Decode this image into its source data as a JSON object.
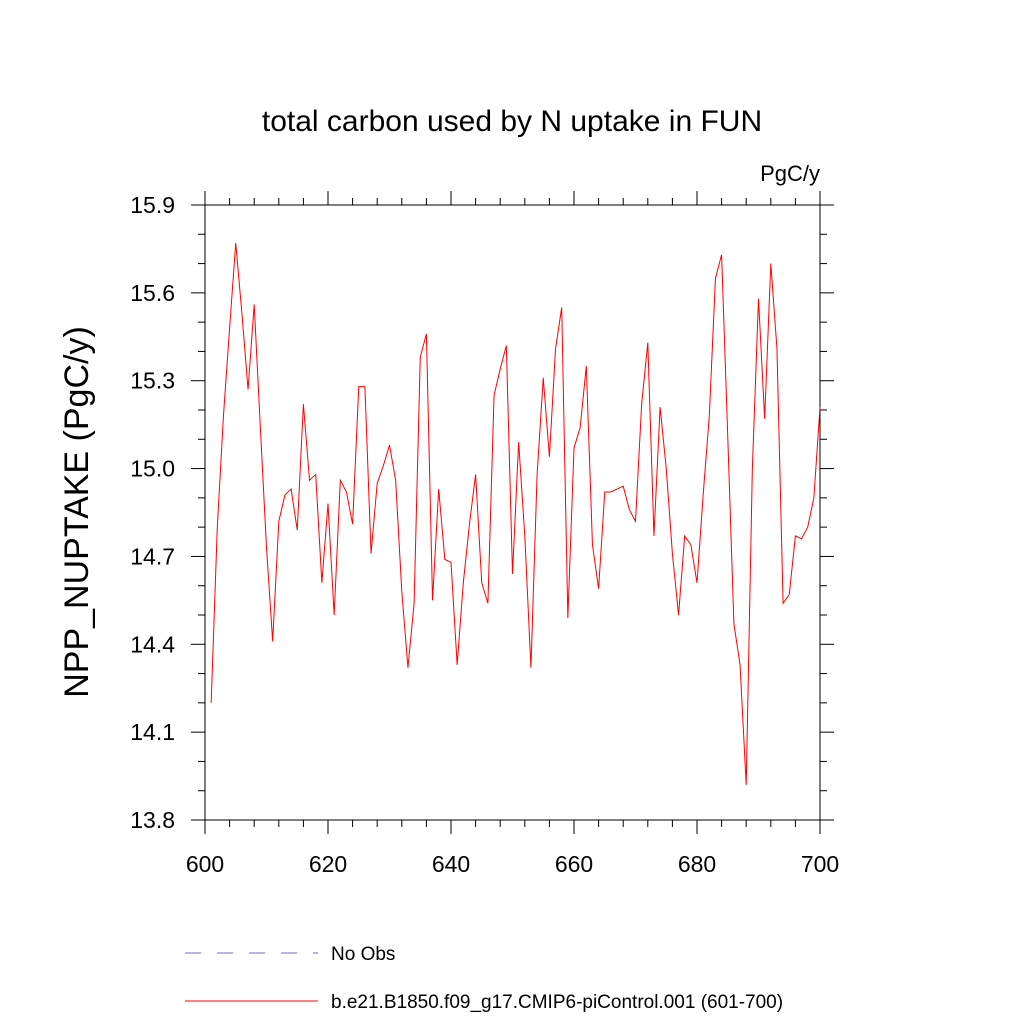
{
  "chart_data": {
    "type": "line",
    "title": "total carbon used by N uptake in FUN",
    "units_label": "PgC/y",
    "ylabel": "NPP_NUPTAKE  (PgC/y)",
    "xlabel": "",
    "xlim": [
      600,
      700
    ],
    "ylim": [
      13.8,
      15.9
    ],
    "xticks": [
      600,
      620,
      640,
      660,
      680,
      700
    ],
    "xtick_labels": [
      "600",
      "620",
      "640",
      "660",
      "680",
      "700"
    ],
    "yticks": [
      13.8,
      14.1,
      14.4,
      14.7,
      15.0,
      15.3,
      15.6,
      15.9
    ],
    "ytick_labels": [
      "13.8",
      "14.1",
      "14.4",
      "14.7",
      "15.0",
      "15.3",
      "15.6",
      "15.9"
    ],
    "series": [
      {
        "name": "b.e21.B1850.f09_g17.CMIP6-piControl.001 (601-700)",
        "color": "#ff0000",
        "style": "solid",
        "x": [
          601,
          602,
          603,
          604,
          605,
          606,
          607,
          608,
          609,
          610,
          611,
          612,
          613,
          614,
          615,
          616,
          617,
          618,
          619,
          620,
          621,
          622,
          623,
          624,
          625,
          626,
          627,
          628,
          629,
          630,
          631,
          632,
          633,
          634,
          635,
          636,
          637,
          638,
          639,
          640,
          641,
          642,
          643,
          644,
          645,
          646,
          647,
          648,
          649,
          650,
          651,
          652,
          653,
          654,
          655,
          656,
          657,
          658,
          659,
          660,
          661,
          662,
          663,
          664,
          665,
          666,
          667,
          668,
          669,
          670,
          671,
          672,
          673,
          674,
          675,
          676,
          677,
          678,
          679,
          680,
          681,
          682,
          683,
          684,
          685,
          686,
          687,
          688,
          689,
          690,
          691,
          692,
          693,
          694,
          695,
          696,
          697,
          698,
          699,
          700
        ],
        "values": [
          14.2,
          14.8,
          15.18,
          15.48,
          15.77,
          15.53,
          15.27,
          15.56,
          15.14,
          14.73,
          14.41,
          14.82,
          14.91,
          14.93,
          14.79,
          15.22,
          14.96,
          14.98,
          14.61,
          14.88,
          14.5,
          14.96,
          14.92,
          14.81,
          15.28,
          15.28,
          14.71,
          14.95,
          15.01,
          15.08,
          14.96,
          14.58,
          14.32,
          14.54,
          15.38,
          15.46,
          14.55,
          14.93,
          14.69,
          14.68,
          14.33,
          14.61,
          14.81,
          14.98,
          14.61,
          14.54,
          15.25,
          15.34,
          15.42,
          14.64,
          15.09,
          14.77,
          14.32,
          14.98,
          15.31,
          15.04,
          15.41,
          15.55,
          14.49,
          15.07,
          15.14,
          15.35,
          14.74,
          14.59,
          14.92,
          14.92,
          14.93,
          14.94,
          14.86,
          14.82,
          15.22,
          15.43,
          14.77,
          15.21,
          15.0,
          14.71,
          14.5,
          14.77,
          14.74,
          14.61,
          14.91,
          15.18,
          15.65,
          15.73,
          15.11,
          14.47,
          14.33,
          13.92,
          15.0,
          15.58,
          15.17,
          15.7,
          15.41,
          14.54,
          14.57,
          14.77,
          14.76,
          14.8,
          14.9,
          15.21
        ]
      },
      {
        "name": "No Obs",
        "color": "#6b6bc8",
        "style": "dashed",
        "x": [],
        "values": []
      }
    ],
    "legend_position": "bottom"
  }
}
